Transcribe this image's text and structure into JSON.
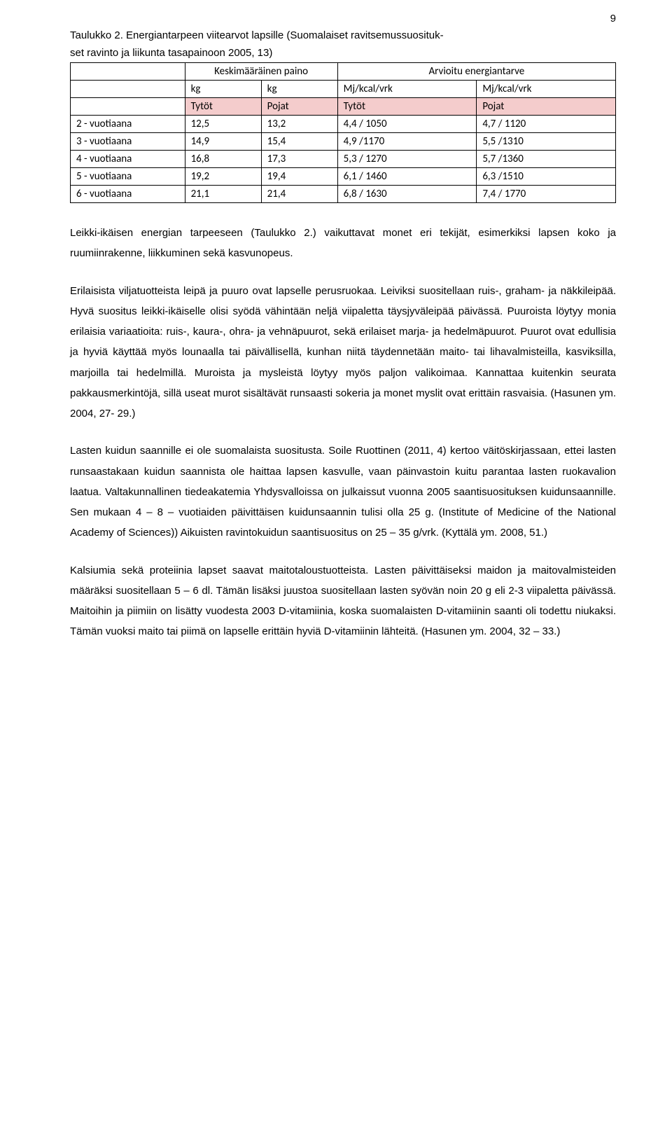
{
  "page_number": "9",
  "caption_line1": "Taulukko 2. Energiantarpeen viitearvot lapsille (Suomalaiset ravitsemussuosituk-",
  "caption_line2": "set ravinto ja liikunta tasapainoon 2005, 13)",
  "table": {
    "header_weight": "Keskimääräinen paino",
    "header_energy": "Arvioitu energiantarve",
    "unit_kg1": "kg",
    "unit_kg2": "kg",
    "unit_mj1": "Mj/kcal/vrk",
    "unit_mj2": "Mj/kcal/vrk",
    "sub_tytot1": "Tytöt",
    "sub_pojat1": "Pojat",
    "sub_tytot2": "Tytöt",
    "sub_pojat2": "Pojat",
    "rows": [
      {
        "age": "2  - vuotiaana",
        "kg1": "12,5",
        "kg2": "13,2",
        "mj1": "4,4 / 1050",
        "mj2": "4,7 / 1120"
      },
      {
        "age": "3 - vuotiaana",
        "kg1": "14,9",
        "kg2": "15,4",
        "mj1": "4,9 /1170",
        "mj2": "5,5 /1310"
      },
      {
        "age": "4 - vuotiaana",
        "kg1": "16,8",
        "kg2": "17,3",
        "mj1": "5,3 / 1270",
        "mj2": "5,7 /1360"
      },
      {
        "age": "5 - vuotiaana",
        "kg1": "19,2",
        "kg2": "19,4",
        "mj1": "6,1 / 1460",
        "mj2": "6,3 /1510"
      },
      {
        "age": "6 - vuotiaana",
        "kg1": "21,1",
        "kg2": "21,4",
        "mj1": "6,8 / 1630",
        "mj2": "7,4 / 1770"
      }
    ]
  },
  "para1": "Leikki-ikäisen energian tarpeeseen (Taulukko 2.) vaikuttavat monet eri tekijät, esimerkiksi lapsen koko ja ruumiinrakenne, liikkuminen sekä kasvunopeus.",
  "para2": "Erilaisista viljatuotteista leipä ja puuro ovat lapselle perusruokaa. Leiviksi suositellaan ruis-, graham- ja näkkileipää. Hyvä suositus leikki-ikäiselle olisi syödä vähintään neljä viipaletta täysjyväleipää päivässä. Puuroista löytyy monia erilaisia variaatioita: ruis-, kaura-, ohra- ja vehnäpuurot, sekä erilaiset marja- ja hedelmäpuurot. Puurot ovat edullisia ja hyviä käyttää myös lounaalla tai päivällisellä, kunhan niitä täydennetään maito- tai lihavalmisteilla, kasviksilla, marjoilla tai hedelmillä. Muroista ja mysleistä löytyy myös paljon valikoimaa. Kannattaa kuitenkin seurata pakkausmerkintöjä, sillä useat murot sisältävät runsaasti sokeria ja monet myslit ovat erittäin rasvaisia. (Hasunen ym. 2004, 27- 29.)",
  "para3": "Lasten kuidun saannille ei ole suomalaista suositusta. Soile Ruottinen (2011, 4) kertoo väitöskirjassaan, ettei lasten runsaastakaan kuidun saannista ole haittaa lapsen kasvulle, vaan päinvastoin kuitu parantaa lasten ruokavalion laatua. Valtakunnallinen tiedeakatemia Yhdysvalloissa on julkaissut vuonna 2005 saantisuosituksen kuidunsaannille. Sen mukaan 4 – 8 – vuotiaiden päivittäisen kuidunsaannin tulisi olla 25 g. (Institute of Medicine of the National Academy of Sciences)) Aikuisten ravintokuidun saantisuositus on 25 – 35 g/vrk. (Kyttälä ym. 2008, 51.)",
  "para4": "Kalsiumia sekä proteiinia lapset saavat maitotaloustuotteista. Lasten päivittäiseksi maidon ja maitovalmisteiden määräksi suositellaan 5 – 6 dl. Tämän lisäksi juustoa suositellaan lasten syövän noin 20 g eli 2-3 viipaletta päivässä. Maitoihin ja piimiin on lisätty vuodesta 2003 D-vitamiinia, koska suomalaisten D-vitamiinin saanti oli todettu niukaksi. Tämän vuoksi maito tai piimä on lapselle erittäin hyviä D-vitamiinin lähteitä. (Hasunen ym. 2004, 32 – 33.)"
}
